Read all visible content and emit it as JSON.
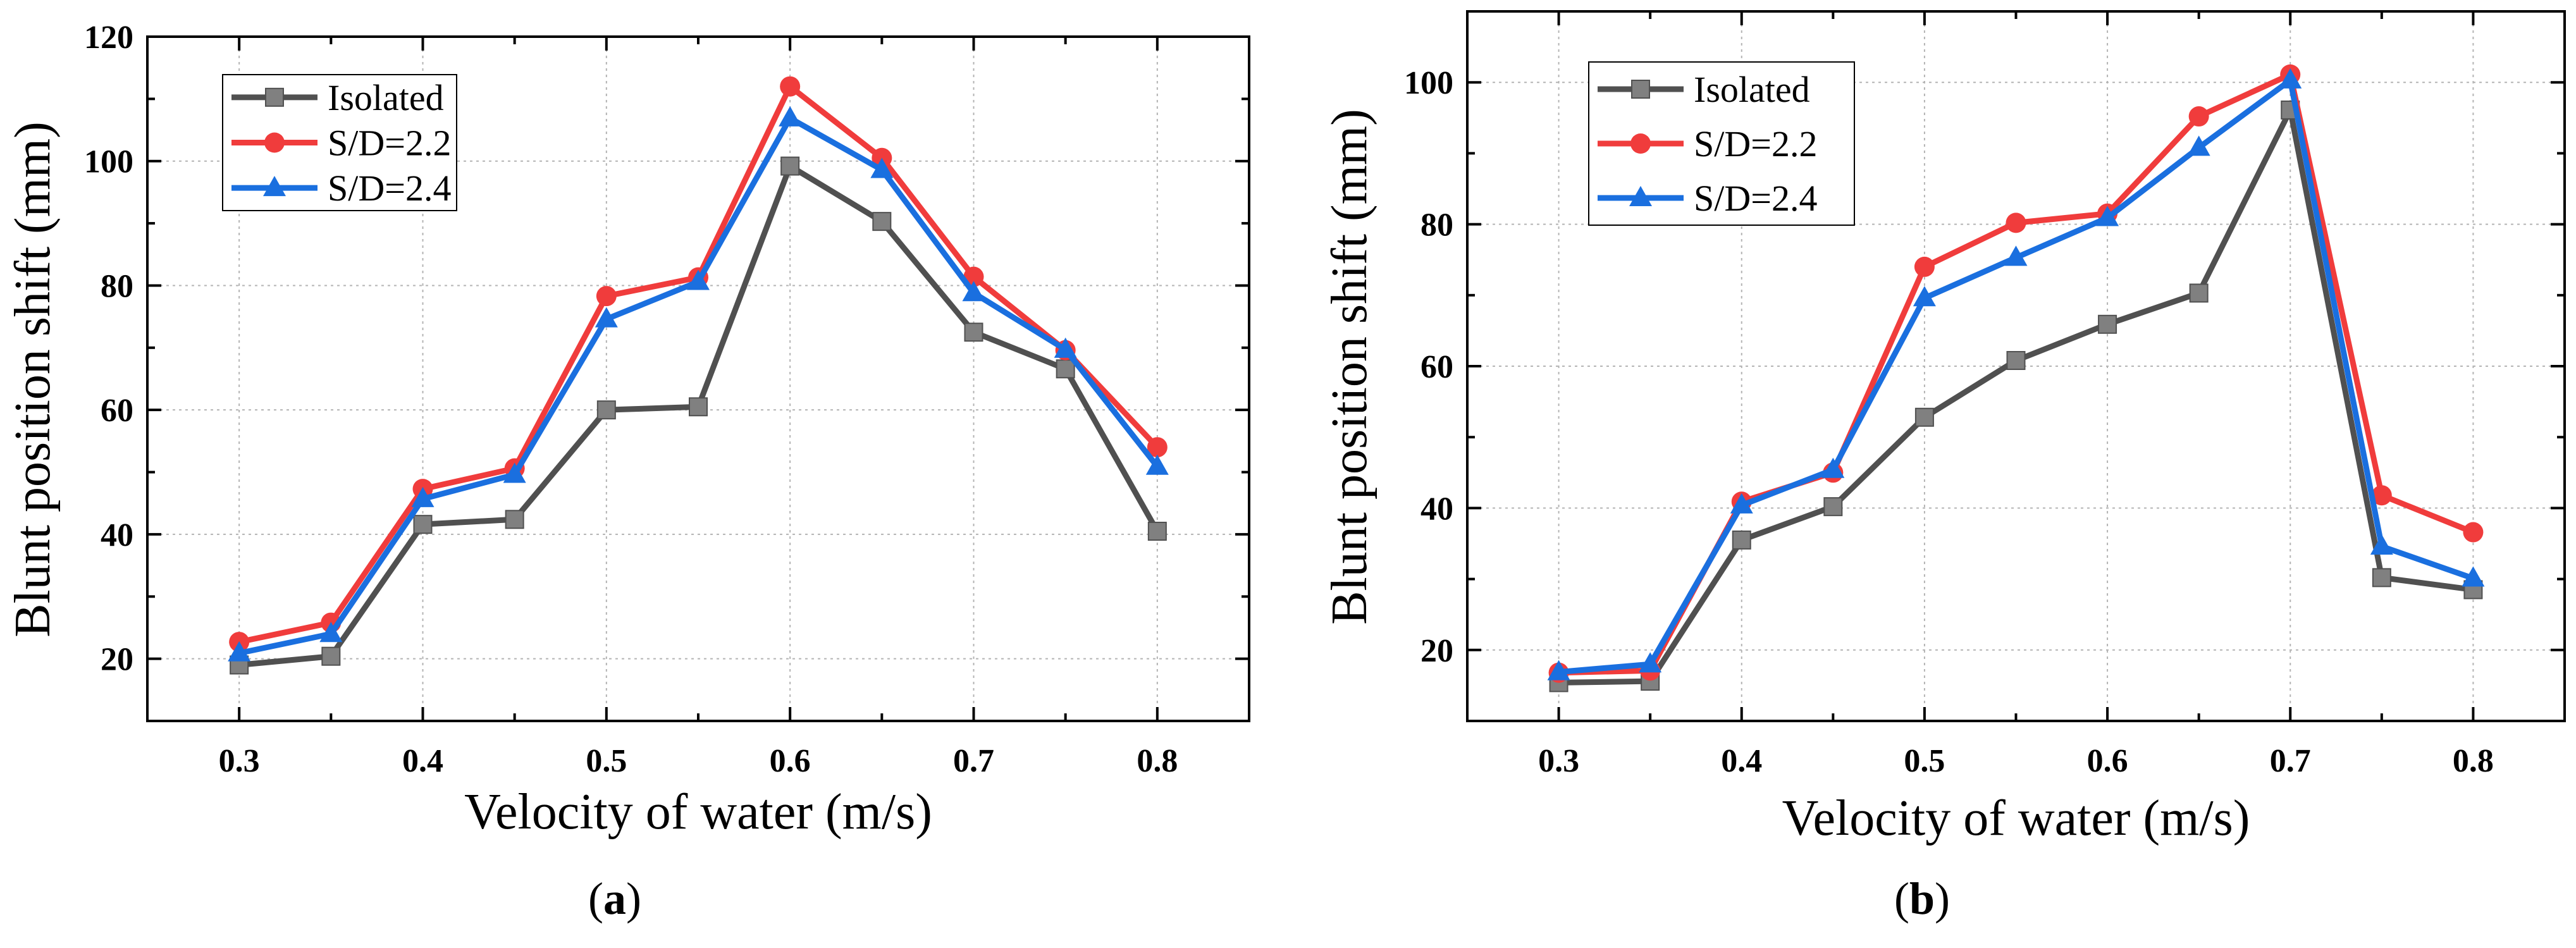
{
  "chart_data": [
    {
      "type": "line",
      "panel_label": "a",
      "xlabel": "Velocity of water (m/s)",
      "ylabel": "Blunt position shift (mm)",
      "xlim": [
        0.25,
        0.85
      ],
      "ylim": [
        10,
        120
      ],
      "xticks": [
        "0.3",
        "0.4",
        "0.5",
        "0.6",
        "0.7",
        "0.8"
      ],
      "yticks": [
        "20",
        "40",
        "60",
        "80",
        "100",
        "120"
      ],
      "grid": true,
      "legend": "top-left",
      "x": [
        0.3,
        0.35,
        0.4,
        0.45,
        0.5,
        0.55,
        0.6,
        0.65,
        0.7,
        0.75,
        0.8
      ],
      "series": [
        {
          "name": "Isolated",
          "color": "#505050",
          "marker": "square",
          "values": [
            19.0,
            20.4,
            41.6,
            42.4,
            60.0,
            60.5,
            99.2,
            90.3,
            72.5,
            66.6,
            40.5
          ]
        },
        {
          "name": "S/D=2.2",
          "color": "#f03c3c",
          "marker": "circle",
          "values": [
            22.7,
            25.8,
            47.3,
            50.6,
            78.3,
            81.3,
            112.0,
            100.5,
            81.4,
            69.6,
            54.0
          ]
        },
        {
          "name": "S/D=2.4",
          "color": "#1a6fdf",
          "marker": "triangle",
          "values": [
            20.9,
            24.0,
            45.7,
            49.6,
            74.6,
            80.6,
            106.9,
            98.6,
            78.8,
            69.7,
            50.9
          ]
        }
      ]
    },
    {
      "type": "line",
      "panel_label": "b",
      "xlabel": "Velocity of water (m/s)",
      "ylabel": "Blunt position shift (mm)",
      "xlim": [
        0.25,
        0.85
      ],
      "ylim": [
        10,
        110
      ],
      "xticks": [
        "0.3",
        "0.4",
        "0.5",
        "0.6",
        "0.7",
        "0.8"
      ],
      "yticks": [
        "20",
        "40",
        "60",
        "80",
        "100"
      ],
      "grid": true,
      "legend": "top-left",
      "x": [
        0.3,
        0.35,
        0.4,
        0.45,
        0.5,
        0.55,
        0.6,
        0.65,
        0.7,
        0.75,
        0.8
      ],
      "series": [
        {
          "name": "Isolated",
          "color": "#505050",
          "marker": "square",
          "values": [
            15.4,
            15.6,
            35.5,
            40.2,
            52.8,
            60.8,
            65.9,
            70.3,
            96.1,
            30.2,
            28.5
          ]
        },
        {
          "name": "S/D=2.2",
          "color": "#f03c3c",
          "marker": "circle",
          "values": [
            16.8,
            17.1,
            40.9,
            45.0,
            74.0,
            80.2,
            81.5,
            95.2,
            101.1,
            41.8,
            36.6
          ]
        },
        {
          "name": "S/D=2.4",
          "color": "#1a6fdf",
          "marker": "triangle",
          "values": [
            16.9,
            18.0,
            40.4,
            45.4,
            69.6,
            75.3,
            80.9,
            90.8,
            100.3,
            34.6,
            30.1
          ]
        }
      ]
    }
  ]
}
